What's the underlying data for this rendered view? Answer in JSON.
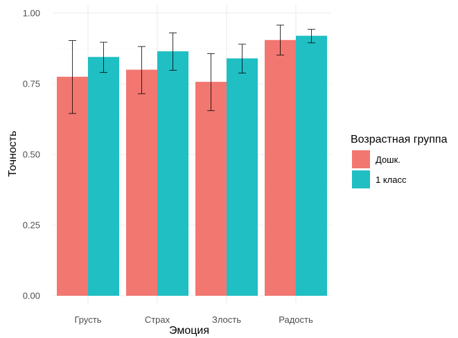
{
  "chart_data": {
    "type": "bar",
    "categories": [
      "Грусть",
      "Страх",
      "Злость",
      "Радость"
    ],
    "xlabel": "Эмоция",
    "ylabel": "Точность",
    "ylim": [
      0,
      1
    ],
    "yticks": [
      0,
      0.25,
      0.5,
      0.75,
      1
    ],
    "ytick_labels": [
      "0.00",
      "0.25",
      "0.50",
      "0.75",
      "1.00"
    ],
    "grid": true,
    "legend": {
      "title": "Возрастная группа",
      "placement": "right"
    },
    "series": [
      {
        "name": "Дошк.",
        "color": "#F27770",
        "values": [
          0.775,
          0.8,
          0.757,
          0.905
        ],
        "error_low": [
          0.645,
          0.715,
          0.655,
          0.852
        ],
        "error_high": [
          0.903,
          0.882,
          0.857,
          0.958
        ]
      },
      {
        "name": "1 класс",
        "color": "#1FBFC3",
        "values": [
          0.845,
          0.865,
          0.84,
          0.92
        ],
        "error_low": [
          0.79,
          0.798,
          0.788,
          0.895
        ],
        "error_high": [
          0.897,
          0.93,
          0.89,
          0.943
        ]
      }
    ]
  }
}
